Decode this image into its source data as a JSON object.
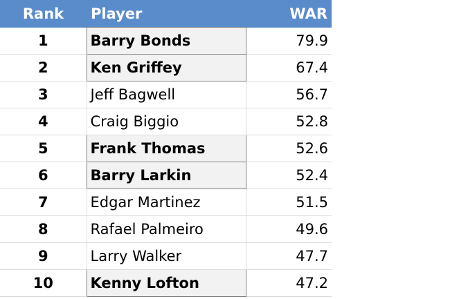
{
  "table": {
    "header": [
      "Rank",
      "Player",
      "WAR"
    ],
    "rows": [
      [
        1,
        "Barry Bonds",
        79.9
      ],
      [
        2,
        "Ken Griffey",
        67.4
      ],
      [
        3,
        "Jeff Bagwell",
        56.7
      ],
      [
        4,
        "Craig Biggio",
        52.8
      ],
      [
        5,
        "Frank Thomas",
        52.6
      ],
      [
        6,
        "Barry Larkin",
        52.4
      ],
      [
        7,
        "Edgar Martinez",
        51.5
      ],
      [
        8,
        "Rafael Palmeiro",
        49.6
      ],
      [
        9,
        "Larry Walker",
        47.7
      ],
      [
        10,
        "Kenny Lofton",
        47.2
      ]
    ]
  }
}
